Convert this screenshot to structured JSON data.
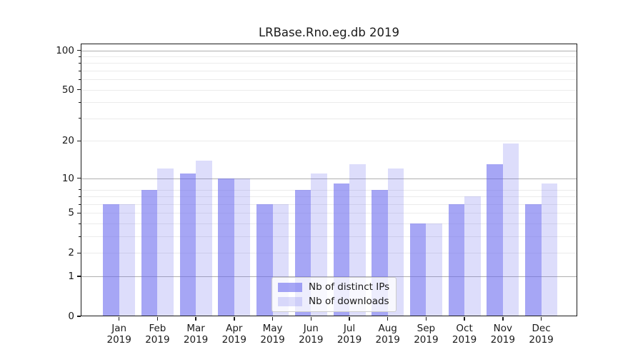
{
  "title": "LRBase.Rno.eg.db 2019",
  "chart_data": {
    "type": "bar",
    "title": "LRBase.Rno.eg.db 2019",
    "categories": [
      "Jan",
      "Feb",
      "Mar",
      "Apr",
      "May",
      "Jun",
      "Jul",
      "Aug",
      "Sep",
      "Oct",
      "Nov",
      "Dec"
    ],
    "year_label": "2019",
    "series": [
      {
        "name": "Nb of distinct IPs",
        "color": "#6666ee",
        "alpha": 0.58,
        "rendered_hex": "#a6a6f5",
        "values": [
          6,
          8,
          11,
          10,
          6,
          8,
          9,
          8,
          4,
          6,
          13,
          6
        ]
      },
      {
        "name": "Nb of downloads",
        "color": "#6666ee",
        "alpha": 0.22,
        "rendered_hex": "#dcdcfa",
        "values": [
          6,
          12,
          14,
          10,
          6,
          11,
          13,
          12,
          4,
          7,
          19,
          9
        ]
      }
    ],
    "xlabel": "",
    "ylabel": "",
    "yscale": "log1p",
    "ylim": [
      0,
      113
    ],
    "yticks": [
      0,
      1,
      2,
      5,
      10,
      20,
      50,
      100
    ],
    "ytick_major": [
      1,
      10,
      100
    ],
    "ytick_minor": [
      2,
      3,
      4,
      5,
      6,
      7,
      8,
      20,
      30,
      40,
      50,
      60,
      70,
      80,
      90
    ],
    "grid": "horizontal",
    "legend_position": "bottom-center",
    "axis_color": "#1a1a1a",
    "grid_major_color": "#b0b0b0",
    "grid_minor_color": "#ebebeb"
  }
}
